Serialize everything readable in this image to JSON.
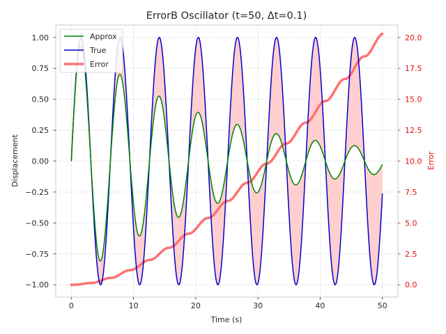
{
  "chart_data": {
    "type": "line",
    "title": "ErrorB Oscillator (t=50, Δt=0.1)",
    "xlabel": "Time (s)",
    "ylabel_left": "Displacement",
    "ylabel_right": "Error",
    "xlim": [
      -2.5,
      52.5
    ],
    "ylim_left": [
      -1.1,
      1.1
    ],
    "ylim_right": [
      -1.0,
      21.0
    ],
    "x_ticks": [
      0,
      10,
      20,
      30,
      40,
      50
    ],
    "y_ticks_left": [
      -1.0,
      -0.75,
      -0.5,
      -0.25,
      0.0,
      0.25,
      0.5,
      0.75,
      1.0
    ],
    "y_ticks_left_labels": [
      "−1.00",
      "−0.75",
      "−0.50",
      "−0.25",
      "0.00",
      "0.25",
      "0.50",
      "0.75",
      "1.00"
    ],
    "y_ticks_right": [
      0.0,
      2.5,
      5.0,
      7.5,
      10.0,
      12.5,
      15.0,
      17.5,
      20.0
    ],
    "y_ticks_right_labels": [
      "0.0",
      "2.5",
      "5.0",
      "7.5",
      "10.0",
      "12.5",
      "15.0",
      "17.5",
      "20.0"
    ],
    "grid": true,
    "legend_position": "top-left",
    "t_end": 50,
    "dt": 0.1,
    "series": [
      {
        "name": "Approx",
        "color": "#008000",
        "axis": "left",
        "formula": "exp(-0.0456*t)*sin(t)",
        "description": "damped sine, amplitude decays from 1.0 to about 0.1 at t=50"
      },
      {
        "name": "True",
        "color": "#0000cc",
        "axis": "left",
        "formula": "sin(t)",
        "description": "undamped sine with amplitude 1"
      },
      {
        "name": "Error",
        "color": "#ff7070",
        "axis": "right",
        "description": "cumulative absolute difference between True and Approx, rising from 0 to about 20.3 at t=50"
      }
    ],
    "fill_between": {
      "between": [
        "True",
        "Approx"
      ],
      "color": "#ffcccc"
    }
  }
}
